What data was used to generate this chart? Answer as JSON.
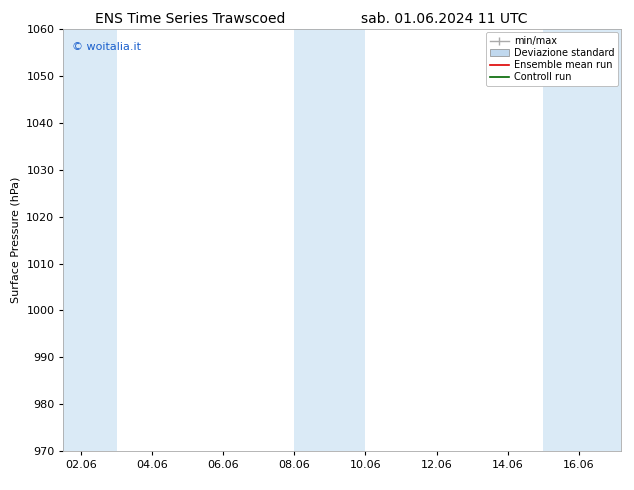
{
  "title_left": "ENS Time Series Trawscoed",
  "title_right": "sab. 01.06.2024 11 UTC",
  "ylabel": "Surface Pressure (hPa)",
  "ylim": [
    970,
    1060
  ],
  "yticks": [
    970,
    980,
    990,
    1000,
    1010,
    1020,
    1030,
    1040,
    1050,
    1060
  ],
  "xlim_start": 1.5,
  "xlim_end": 17.2,
  "xtick_positions": [
    2,
    4,
    6,
    8,
    10,
    12,
    14,
    16
  ],
  "xtick_labels": [
    "02.06",
    "04.06",
    "06.06",
    "08.06",
    "10.06",
    "12.06",
    "14.06",
    "16.06"
  ],
  "background_color": "#ffffff",
  "plot_bg_color": "#ffffff",
  "shaded_bands": [
    {
      "x_start": 1.5,
      "x_end": 3.0
    },
    {
      "x_start": 8.0,
      "x_end": 10.0
    },
    {
      "x_start": 15.0,
      "x_end": 17.2
    }
  ],
  "shaded_color": "#daeaf6",
  "watermark_text": "© woitalia.it",
  "watermark_color": "#1a5fcc",
  "legend_items": [
    {
      "label": "min/max",
      "color": "#aaaaaa",
      "type": "errorbar"
    },
    {
      "label": "Deviazione standard",
      "color": "#c0d8ee",
      "type": "bar"
    },
    {
      "label": "Ensemble mean run",
      "color": "#dd0000",
      "type": "line"
    },
    {
      "label": "Controll run",
      "color": "#006600",
      "type": "line"
    }
  ],
  "title_fontsize": 10,
  "tick_fontsize": 8,
  "ylabel_fontsize": 8,
  "watermark_fontsize": 8,
  "legend_fontsize": 7,
  "figsize": [
    6.34,
    4.9
  ],
  "dpi": 100
}
